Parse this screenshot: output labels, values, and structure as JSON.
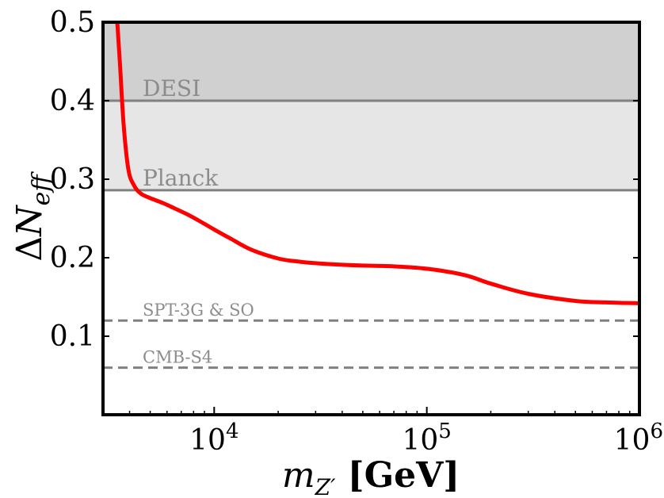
{
  "chart_data": {
    "type": "line",
    "title": "",
    "xlabel": "m_{Z'} [GeV]",
    "ylabel": "ΔN_{eff}",
    "xscale": "log",
    "xlim": [
      3000,
      1000000
    ],
    "ylim": [
      0.0,
      0.5
    ],
    "grid": false,
    "x_ticks": [
      {
        "value": 10000,
        "base": "10",
        "exp": "4"
      },
      {
        "value": 100000,
        "base": "10",
        "exp": "5"
      },
      {
        "value": 1000000,
        "base": "10",
        "exp": "6"
      }
    ],
    "y_ticks": [
      {
        "value": 0.1,
        "label": "0.1"
      },
      {
        "value": 0.2,
        "label": "0.2"
      },
      {
        "value": 0.3,
        "label": "0.3"
      },
      {
        "value": 0.4,
        "label": "0.4"
      },
      {
        "value": 0.5,
        "label": "0.5"
      }
    ],
    "series": [
      {
        "color": "#ff0000",
        "x": [
          3500,
          3600,
          3750,
          3950,
          4200,
          4500,
          5000,
          5700,
          6500,
          7500,
          8500,
          10000,
          12000,
          15000,
          20000,
          25000,
          30000,
          40000,
          50000,
          70000,
          100000,
          150000,
          200000,
          300000,
          500000,
          700000,
          1000000
        ],
        "y": [
          0.5,
          0.45,
          0.37,
          0.312,
          0.292,
          0.282,
          0.276,
          0.27,
          0.263,
          0.255,
          0.247,
          0.236,
          0.224,
          0.21,
          0.199,
          0.195,
          0.193,
          0.191,
          0.19,
          0.189,
          0.186,
          0.178,
          0.167,
          0.154,
          0.145,
          0.143,
          0.142
        ]
      }
    ],
    "bounds": [
      {
        "name": "DESI",
        "value": 0.4,
        "style": "solid",
        "color": "#808080"
      },
      {
        "name": "Planck",
        "value": 0.286,
        "style": "solid",
        "color": "#808080"
      },
      {
        "name": "SPT-3G & SO",
        "value": 0.12,
        "style": "dashed",
        "color": "#808080"
      },
      {
        "name": "CMB-S4",
        "value": 0.06,
        "style": "dashed",
        "color": "#808080"
      }
    ],
    "shaded_regions": [
      {
        "y_from": 0.4,
        "y_to": 0.5,
        "color": "#d0d0d0"
      },
      {
        "y_from": 0.286,
        "y_to": 0.4,
        "color": "#e6e6e6"
      }
    ]
  }
}
